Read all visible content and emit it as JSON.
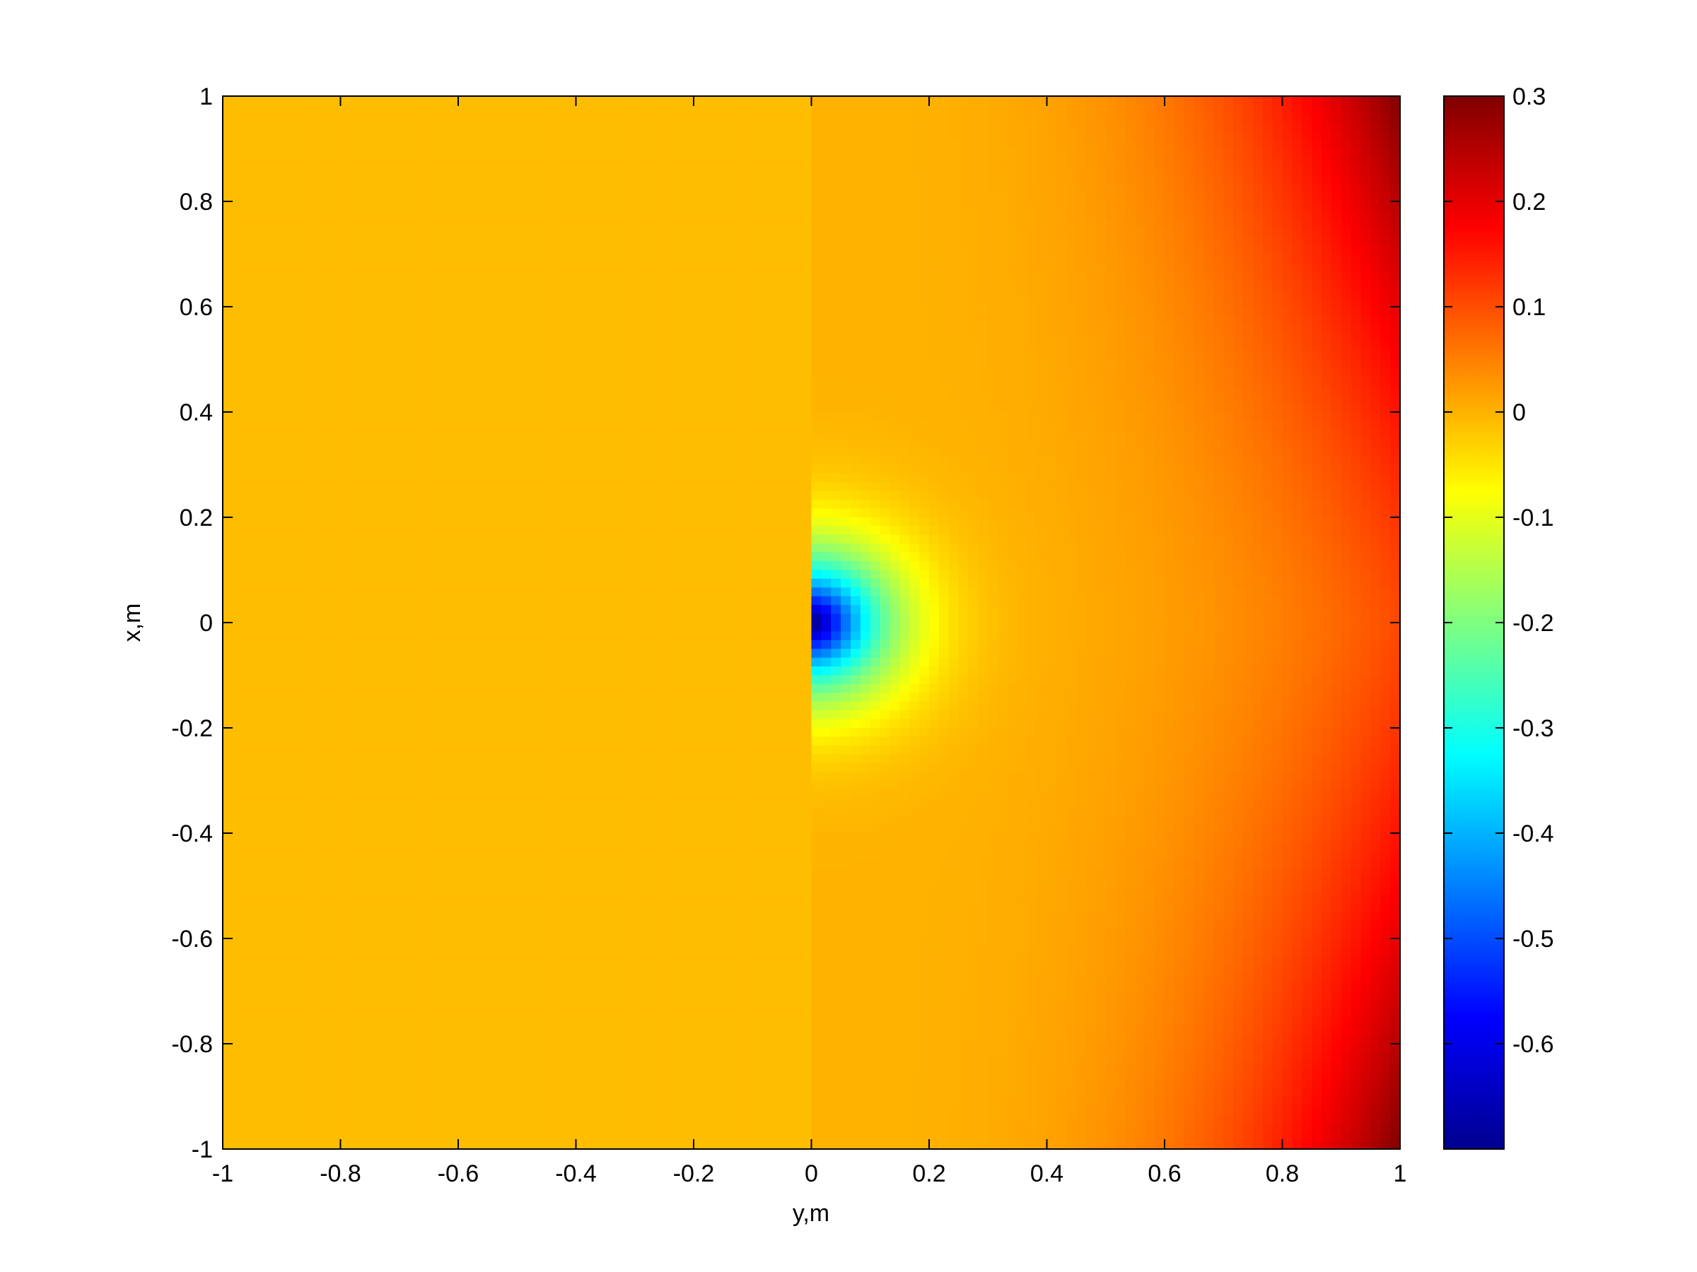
{
  "chart_data": {
    "type": "heatmap",
    "title": "",
    "xlabel": "y,m",
    "ylabel": "x,m",
    "xlim": [
      -1,
      1
    ],
    "ylim": [
      -1,
      1
    ],
    "x_ticks": [
      -1,
      -0.8,
      -0.6,
      -0.4,
      -0.2,
      0,
      0.2,
      0.4,
      0.6,
      0.8,
      1
    ],
    "x_tick_labels": [
      "-1",
      "-0.8",
      "-0.6",
      "-0.4",
      "-0.2",
      "0",
      "0.2",
      "0.4",
      "0.6",
      "0.8",
      "1"
    ],
    "y_ticks": [
      1,
      0.8,
      0.6,
      0.4,
      0.2,
      0,
      -0.2,
      -0.4,
      -0.6,
      -0.8,
      -1
    ],
    "y_tick_labels": [
      "1",
      "0.8",
      "0.6",
      "0.4",
      "0.2",
      "0",
      "-0.2",
      "-0.4",
      "-0.6",
      "-0.8",
      "-1"
    ],
    "grid": false,
    "colormap": "jet",
    "colorbar": {
      "position": "right",
      "range": [
        -0.7,
        0.3
      ],
      "ticks": [
        0.3,
        0.2,
        0.1,
        0,
        -0.1,
        -0.2,
        -0.3,
        -0.4,
        -0.5,
        -0.6
      ],
      "tick_labels": [
        "0.3",
        "0.2",
        "0.1",
        "0",
        "-0.1",
        "-0.2",
        "-0.3",
        "-0.4",
        "-0.5",
        "-0.6"
      ]
    },
    "field": {
      "description_points": [
        {
          "y": -1,
          "x": 0,
          "value": 0.0
        },
        {
          "y": 0,
          "x": 1,
          "value": 0.0
        },
        {
          "y": 0.02,
          "x": 0,
          "value": -0.68
        },
        {
          "y": 0.1,
          "x": 0,
          "value": -0.35
        },
        {
          "y": 0.2,
          "x": 0,
          "value": -0.12
        },
        {
          "y": 0.3,
          "x": 0,
          "value": -0.03
        },
        {
          "y": 0.5,
          "x": 0,
          "value": 0.0
        },
        {
          "y": 0.8,
          "x": 1,
          "value": 0.18
        },
        {
          "y": 1,
          "x": 1,
          "value": 0.3
        },
        {
          "y": 1,
          "x": -1,
          "value": 0.25
        },
        {
          "y": 1,
          "x": 0,
          "value": 0.05
        }
      ]
    }
  }
}
